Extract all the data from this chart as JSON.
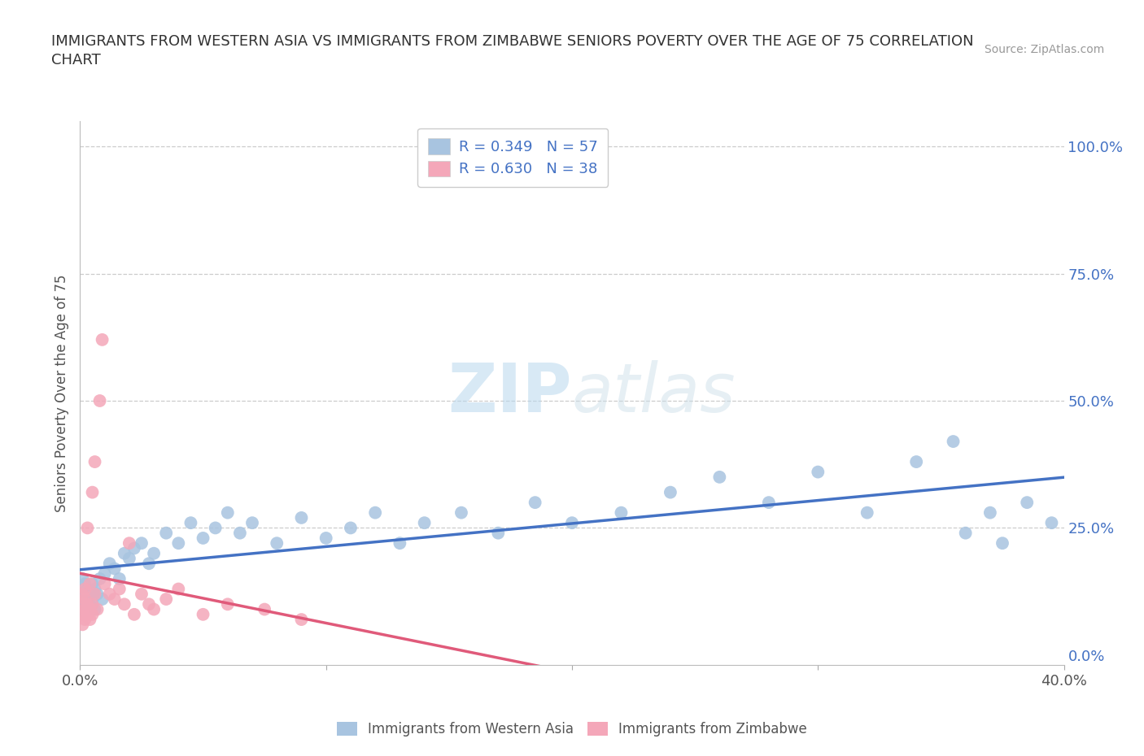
{
  "title": "IMMIGRANTS FROM WESTERN ASIA VS IMMIGRANTS FROM ZIMBABWE SENIORS POVERTY OVER THE AGE OF 75 CORRELATION\nCHART",
  "source": "Source: ZipAtlas.com",
  "ylabel": "Seniors Poverty Over the Age of 75",
  "watermark_zip": "ZIP",
  "watermark_atlas": "atlas",
  "xlim": [
    0.0,
    0.4
  ],
  "ylim": [
    -0.02,
    1.05
  ],
  "legend_labels": [
    "Immigrants from Western Asia",
    "Immigrants from Zimbabwe"
  ],
  "R_western_asia": 0.349,
  "N_western_asia": 57,
  "R_zimbabwe": 0.63,
  "N_zimbabwe": 38,
  "color_western_asia": "#a8c4e0",
  "color_zimbabwe": "#f4a7b9",
  "line_color_western_asia": "#4472c4",
  "line_color_zimbabwe": "#e05a7a",
  "wa_x": [
    0.001,
    0.001,
    0.002,
    0.002,
    0.003,
    0.003,
    0.004,
    0.004,
    0.005,
    0.005,
    0.006,
    0.006,
    0.007,
    0.008,
    0.009,
    0.01,
    0.012,
    0.014,
    0.016,
    0.018,
    0.02,
    0.022,
    0.025,
    0.028,
    0.03,
    0.035,
    0.04,
    0.045,
    0.05,
    0.055,
    0.06,
    0.065,
    0.07,
    0.08,
    0.09,
    0.1,
    0.11,
    0.12,
    0.13,
    0.14,
    0.155,
    0.17,
    0.185,
    0.2,
    0.22,
    0.24,
    0.26,
    0.28,
    0.3,
    0.32,
    0.34,
    0.355,
    0.36,
    0.37,
    0.375,
    0.385,
    0.395
  ],
  "wa_y": [
    0.12,
    0.15,
    0.1,
    0.14,
    0.11,
    0.13,
    0.1,
    0.12,
    0.14,
    0.11,
    0.13,
    0.09,
    0.12,
    0.15,
    0.11,
    0.16,
    0.18,
    0.17,
    0.15,
    0.2,
    0.19,
    0.21,
    0.22,
    0.18,
    0.2,
    0.24,
    0.22,
    0.26,
    0.23,
    0.25,
    0.28,
    0.24,
    0.26,
    0.22,
    0.27,
    0.23,
    0.25,
    0.28,
    0.22,
    0.26,
    0.28,
    0.24,
    0.3,
    0.26,
    0.28,
    0.32,
    0.35,
    0.3,
    0.36,
    0.28,
    0.38,
    0.42,
    0.24,
    0.28,
    0.22,
    0.3,
    0.26
  ],
  "zim_x": [
    0.001,
    0.001,
    0.001,
    0.001,
    0.002,
    0.002,
    0.002,
    0.002,
    0.003,
    0.003,
    0.003,
    0.004,
    0.004,
    0.004,
    0.005,
    0.005,
    0.005,
    0.006,
    0.006,
    0.007,
    0.008,
    0.009,
    0.01,
    0.012,
    0.014,
    0.016,
    0.018,
    0.02,
    0.022,
    0.025,
    0.028,
    0.03,
    0.035,
    0.04,
    0.05,
    0.06,
    0.075,
    0.09
  ],
  "zim_y": [
    0.08,
    0.1,
    0.12,
    0.06,
    0.09,
    0.11,
    0.07,
    0.13,
    0.08,
    0.1,
    0.25,
    0.09,
    0.14,
    0.07,
    0.08,
    0.32,
    0.1,
    0.38,
    0.12,
    0.09,
    0.5,
    0.62,
    0.14,
    0.12,
    0.11,
    0.13,
    0.1,
    0.22,
    0.08,
    0.12,
    0.1,
    0.09,
    0.11,
    0.13,
    0.08,
    0.1,
    0.09,
    0.07
  ]
}
